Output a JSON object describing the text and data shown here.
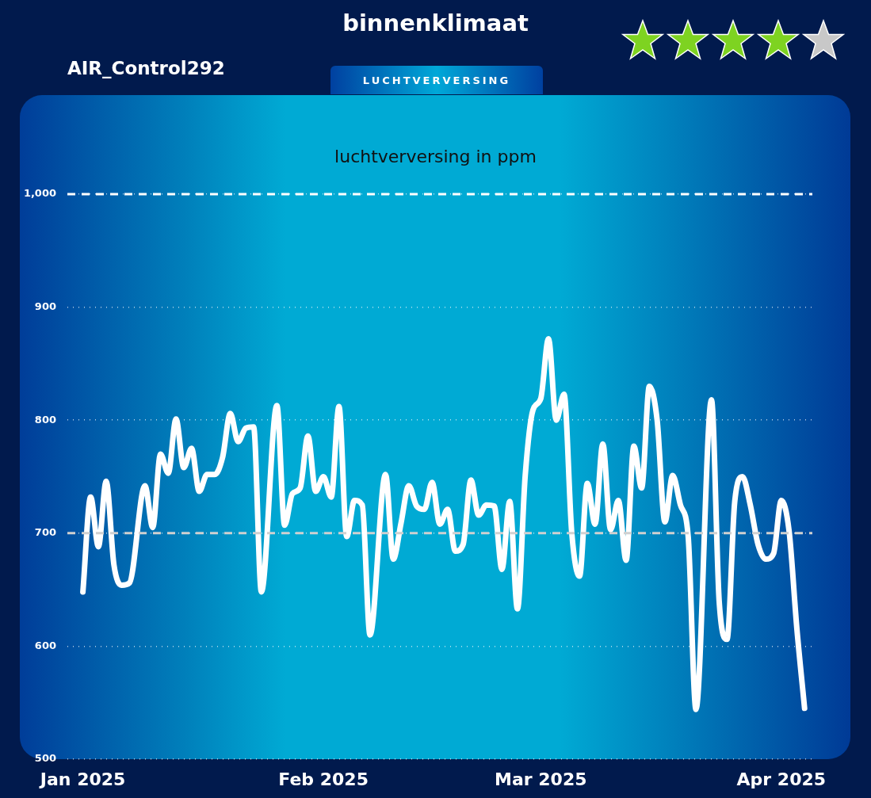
{
  "chart_data": {
    "type": "line",
    "title": "binnenklimaat",
    "subtitle": "luchtverversing in ppm",
    "annotations": [
      "AIR_Control292",
      "LUCHTVERVERSING"
    ],
    "x": [
      "2025-01-01",
      "2025-01-02",
      "2025-01-03",
      "2025-01-04",
      "2025-01-05",
      "2025-01-06",
      "2025-01-07",
      "2025-01-09",
      "2025-01-10",
      "2025-01-11",
      "2025-01-12",
      "2025-01-13",
      "2025-01-14",
      "2025-01-15",
      "2025-01-16",
      "2025-01-17",
      "2025-01-18",
      "2025-01-19",
      "2025-01-20",
      "2025-01-21",
      "2025-01-22",
      "2025-01-23",
      "2025-01-24",
      "2025-01-26",
      "2025-01-27",
      "2025-01-28",
      "2025-01-29",
      "2025-01-30",
      "2025-01-31",
      "2025-02-01",
      "2025-02-02",
      "2025-02-03",
      "2025-02-04",
      "2025-02-05",
      "2025-02-06",
      "2025-02-07",
      "2025-02-09",
      "2025-02-10",
      "2025-02-11",
      "2025-02-12",
      "2025-02-13",
      "2025-02-14",
      "2025-02-15",
      "2025-02-16",
      "2025-02-17",
      "2025-02-18",
      "2025-02-19",
      "2025-02-20",
      "2025-02-21",
      "2025-02-22",
      "2025-02-23",
      "2025-02-24",
      "2025-02-25",
      "2025-02-26",
      "2025-02-27",
      "2025-02-28",
      "2025-03-01",
      "2025-03-02",
      "2025-03-03",
      "2025-03-04",
      "2025-03-05",
      "2025-03-06",
      "2025-03-07",
      "2025-03-08",
      "2025-03-09",
      "2025-03-10",
      "2025-03-11",
      "2025-03-12",
      "2025-03-13",
      "2025-03-14",
      "2025-03-15",
      "2025-03-16",
      "2025-03-17",
      "2025-03-18",
      "2025-03-19",
      "2025-03-20",
      "2025-03-21",
      "2025-03-23",
      "2025-03-24",
      "2025-03-25",
      "2025-03-26",
      "2025-03-27",
      "2025-03-28",
      "2025-03-29",
      "2025-03-30",
      "2025-03-31",
      "2025-04-01",
      "2025-04-02",
      "2025-04-03",
      "2025-04-04"
    ],
    "series": [
      {
        "color": "#ffffff",
        "values": [
          648,
          732,
          688,
          746,
          672,
          654,
          656,
          742,
          705,
          770,
          753,
          801,
          758,
          775,
          737,
          752,
          752,
          767,
          806,
          781,
          793,
          794,
          648,
          813,
          707,
          735,
          740,
          786,
          737,
          750,
          732,
          812,
          697,
          729,
          725,
          610,
          752,
          677,
          709,
          742,
          724,
          721,
          745,
          708,
          721,
          684,
          690,
          747,
          716,
          725,
          724,
          668,
          728,
          633,
          751,
          809,
          819,
          872,
          800,
          823,
          700,
          662,
          744,
          708,
          779,
          703,
          729,
          676,
          777,
          740,
          830,
          800,
          710,
          751,
          725,
          697,
          544,
          818,
          639,
          606,
          728,
          750,
          725,
          690,
          677,
          682,
          729,
          702,
          616,
          545
        ]
      }
    ],
    "xlim": [
      "2024-12-30",
      "2025-04-05"
    ],
    "xticks": [
      {
        "value": "2025-01-01",
        "label": "Jan 2025"
      },
      {
        "value": "2025-02-01",
        "label": "Feb 2025"
      },
      {
        "value": "2025-03-01",
        "label": "Mar 2025"
      },
      {
        "value": "2025-04-01",
        "label": "Apr 2025"
      }
    ],
    "ylim": [
      500,
      1000
    ],
    "yticks": [
      500,
      600,
      700,
      800,
      900,
      {
        "value": 1000,
        "label": "1,000"
      }
    ],
    "ref_lines": [
      {
        "axis": "y",
        "value": 1000,
        "color": "#ffffff",
        "line_style": "dashed"
      },
      {
        "axis": "y",
        "value": 700,
        "color": "#d0d0d0",
        "line_style": "dashed"
      }
    ],
    "grid": "y",
    "legend": false,
    "marker": "none",
    "line_style": "solid"
  }
}
